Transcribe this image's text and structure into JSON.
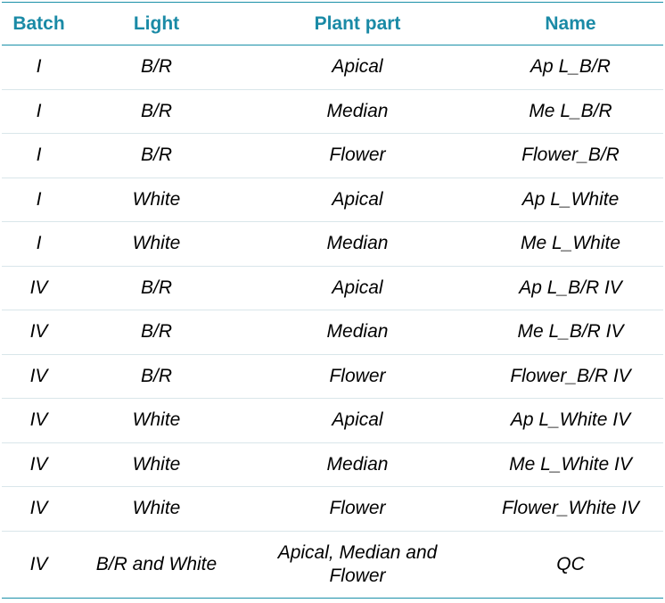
{
  "colors": {
    "accent": "#1a8aa6",
    "rule": "#1a90a8",
    "divider": "#d9e6ea"
  },
  "table": {
    "headers": [
      "Batch",
      "Light",
      "Plant part",
      "Name"
    ],
    "rows": [
      [
        "I",
        "B/R",
        "Apical",
        "Ap L_B/R"
      ],
      [
        "I",
        "B/R",
        "Median",
        "Me L_B/R"
      ],
      [
        "I",
        "B/R",
        "Flower",
        "Flower_B/R"
      ],
      [
        "I",
        "White",
        "Apical",
        "Ap L_White"
      ],
      [
        "I",
        "White",
        "Median",
        "Me L_White"
      ],
      [
        "IV",
        "B/R",
        "Apical",
        "Ap L_B/R IV"
      ],
      [
        "IV",
        "B/R",
        "Median",
        "Me L_B/R IV"
      ],
      [
        "IV",
        "B/R",
        "Flower",
        "Flower_B/R IV"
      ],
      [
        "IV",
        "White",
        "Apical",
        "Ap L_White IV"
      ],
      [
        "IV",
        "White",
        "Median",
        "Me L_White IV"
      ],
      [
        "IV",
        "White",
        "Flower",
        "Flower_White IV"
      ],
      [
        "IV",
        "B/R and White",
        "Apical, Median and Flower",
        "QC"
      ]
    ]
  }
}
